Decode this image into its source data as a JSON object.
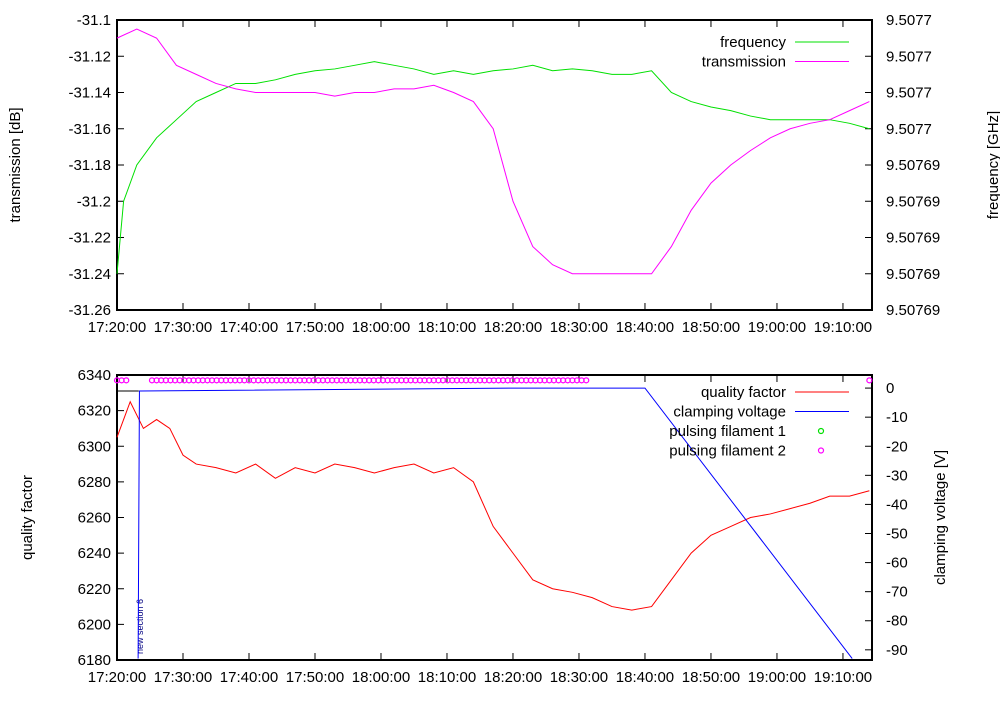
{
  "chart_data": [
    {
      "type": "line",
      "ylabel": "transmission [dB]",
      "y2label": "frequency [GHz]",
      "ylim": [
        -31.26,
        -31.1
      ],
      "yticks": [
        "-31.1",
        "-31.12",
        "-31.14",
        "-31.16",
        "-31.18",
        "-31.2",
        "-31.22",
        "-31.24",
        "-31.26"
      ],
      "y2lim": [
        9.50769,
        9.507706
      ],
      "y2ticks": [
        "9.5077",
        "9.5077",
        "9.5077",
        "9.5077",
        "9.50769",
        "9.50769",
        "9.50769",
        "9.50769",
        "9.50769"
      ],
      "xlim_minutes_from_start": [
        0,
        114.4
      ],
      "xticks": [
        "17:20:00",
        "17:30:00",
        "17:40:00",
        "17:50:00",
        "18:00:00",
        "18:10:00",
        "18:20:00",
        "18:30:00",
        "18:40:00",
        "18:50:00",
        "19:00:00",
        "19:10:00"
      ],
      "legend": "top-right",
      "series": [
        {
          "name": "frequency",
          "axis": "y2",
          "color": "#00e000",
          "x": [
            0,
            1,
            3,
            6,
            9,
            12,
            15,
            18,
            21,
            24,
            27,
            30,
            33,
            36,
            39,
            42,
            45,
            48,
            51,
            54,
            57,
            60,
            63,
            66,
            69,
            72,
            75,
            78,
            81,
            84,
            87,
            90,
            93,
            96,
            99,
            102,
            105,
            108,
            111,
            114
          ],
          "y": [
            9.507692,
            9.507696,
            9.507698,
            9.5076995,
            9.5077005,
            9.5077015,
            9.507702,
            9.5077025,
            9.5077025,
            9.5077027,
            9.507703,
            9.5077032,
            9.5077033,
            9.5077035,
            9.5077037,
            9.5077035,
            9.5077033,
            9.507703,
            9.5077032,
            9.507703,
            9.5077032,
            9.5077033,
            9.5077035,
            9.5077032,
            9.5077033,
            9.5077032,
            9.507703,
            9.507703,
            9.5077032,
            9.507702,
            9.5077015,
            9.5077012,
            9.507701,
            9.5077007,
            9.5077005,
            9.5077005,
            9.5077005,
            9.5077005,
            9.5077003,
            9.5077
          ]
        },
        {
          "name": "transmission",
          "axis": "y",
          "color": "#ff00ff",
          "x": [
            0,
            3,
            6,
            9,
            12,
            15,
            18,
            21,
            24,
            27,
            30,
            33,
            36,
            39,
            42,
            45,
            48,
            51,
            54,
            57,
            60,
            63,
            66,
            69,
            72,
            75,
            78,
            81,
            84,
            87,
            90,
            93,
            96,
            99,
            102,
            105,
            108,
            111,
            114
          ],
          "y": [
            -31.11,
            -31.105,
            -31.11,
            -31.125,
            -31.13,
            -31.135,
            -31.138,
            -31.14,
            -31.14,
            -31.14,
            -31.14,
            -31.142,
            -31.14,
            -31.14,
            -31.138,
            -31.138,
            -31.136,
            -31.14,
            -31.145,
            -31.16,
            -31.2,
            -31.225,
            -31.235,
            -31.24,
            -31.24,
            -31.24,
            -31.24,
            -31.24,
            -31.225,
            -31.205,
            -31.19,
            -31.18,
            -31.172,
            -31.165,
            -31.16,
            -31.157,
            -31.155,
            -31.15,
            -31.145
          ]
        }
      ]
    },
    {
      "type": "line",
      "ylabel": "quality factor",
      "y2label": "clamping voltage [V]",
      "ylim": [
        6180,
        6340
      ],
      "yticks": [
        "6340",
        "6320",
        "6300",
        "6280",
        "6260",
        "6240",
        "6220",
        "6200",
        "6180"
      ],
      "y2lim": [
        -93.5,
        4.5
      ],
      "y2ticks": [
        "0",
        "-10",
        "-20",
        "-30",
        "-40",
        "-50",
        "-60",
        "-70",
        "-80",
        "-90"
      ],
      "xlim_minutes_from_start": [
        0,
        114.4
      ],
      "xticks": [
        "17:20:00",
        "17:30:00",
        "17:40:00",
        "17:50:00",
        "18:00:00",
        "18:10:00",
        "18:20:00",
        "18:30:00",
        "18:40:00",
        "18:50:00",
        "19:00:00",
        "19:10:00"
      ],
      "legend": "top-right",
      "annotation": {
        "text": "new section 6",
        "x": 3.3
      },
      "series": [
        {
          "name": "quality factor",
          "axis": "y",
          "color": "#ff0000",
          "x": [
            0,
            2,
            4,
            6,
            8,
            10,
            12,
            15,
            18,
            21,
            24,
            27,
            30,
            33,
            36,
            39,
            42,
            45,
            48,
            51,
            54,
            57,
            60,
            63,
            66,
            69,
            72,
            75,
            78,
            81,
            84,
            87,
            90,
            93,
            96,
            99,
            102,
            105,
            108,
            111,
            114
          ],
          "y": [
            6305,
            6325,
            6310,
            6315,
            6310,
            6295,
            6290,
            6288,
            6285,
            6290,
            6282,
            6288,
            6285,
            6290,
            6288,
            6285,
            6288,
            6290,
            6285,
            6288,
            6280,
            6255,
            6240,
            6225,
            6220,
            6218,
            6215,
            6210,
            6208,
            6210,
            6225,
            6240,
            6250,
            6255,
            6260,
            6262,
            6265,
            6268,
            6272,
            6272,
            6275
          ]
        },
        {
          "name": "clamping voltage",
          "axis": "y2",
          "color": "#0000ff",
          "x": [
            3.2,
            3.4,
            60,
            80,
            111.4
          ],
          "y": [
            -93,
            -1,
            0,
            0,
            -93
          ]
        },
        {
          "name": "pulsing filament 1",
          "axis": "y",
          "color": "#00e000",
          "marker": "circle",
          "x": [],
          "y": []
        },
        {
          "name": "pulsing filament 2",
          "axis": "y",
          "color": "#ff00ff",
          "marker": "circle",
          "x_ranges": [
            [
              0,
              2
            ],
            [
              5.3,
              71.7
            ],
            [
              114,
              114
            ]
          ],
          "y": 6337
        }
      ]
    }
  ]
}
